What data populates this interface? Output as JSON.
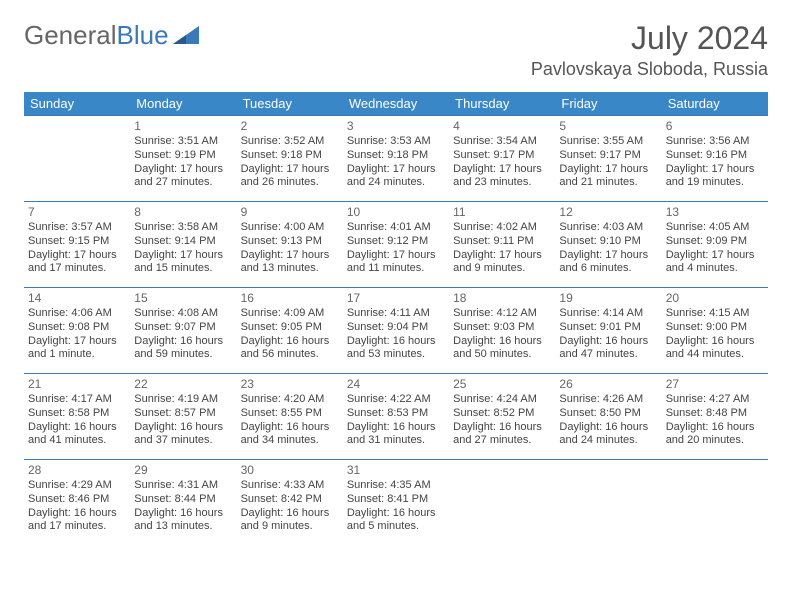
{
  "logo": {
    "word1": "General",
    "word2": "Blue"
  },
  "title": "July 2024",
  "location": "Pavlovskaya Sloboda, Russia",
  "colors": {
    "header_bg": "#3a87c8",
    "header_text": "#ffffff",
    "border": "#3a7ab8",
    "text": "#444444",
    "title_text": "#555555"
  },
  "weekdays": [
    "Sunday",
    "Monday",
    "Tuesday",
    "Wednesday",
    "Thursday",
    "Friday",
    "Saturday"
  ],
  "weeks": [
    [
      {
        "n": "",
        "sr": "",
        "ss": "",
        "dl": ""
      },
      {
        "n": "1",
        "sr": "Sunrise: 3:51 AM",
        "ss": "Sunset: 9:19 PM",
        "dl": "Daylight: 17 hours and 27 minutes."
      },
      {
        "n": "2",
        "sr": "Sunrise: 3:52 AM",
        "ss": "Sunset: 9:18 PM",
        "dl": "Daylight: 17 hours and 26 minutes."
      },
      {
        "n": "3",
        "sr": "Sunrise: 3:53 AM",
        "ss": "Sunset: 9:18 PM",
        "dl": "Daylight: 17 hours and 24 minutes."
      },
      {
        "n": "4",
        "sr": "Sunrise: 3:54 AM",
        "ss": "Sunset: 9:17 PM",
        "dl": "Daylight: 17 hours and 23 minutes."
      },
      {
        "n": "5",
        "sr": "Sunrise: 3:55 AM",
        "ss": "Sunset: 9:17 PM",
        "dl": "Daylight: 17 hours and 21 minutes."
      },
      {
        "n": "6",
        "sr": "Sunrise: 3:56 AM",
        "ss": "Sunset: 9:16 PM",
        "dl": "Daylight: 17 hours and 19 minutes."
      }
    ],
    [
      {
        "n": "7",
        "sr": "Sunrise: 3:57 AM",
        "ss": "Sunset: 9:15 PM",
        "dl": "Daylight: 17 hours and 17 minutes."
      },
      {
        "n": "8",
        "sr": "Sunrise: 3:58 AM",
        "ss": "Sunset: 9:14 PM",
        "dl": "Daylight: 17 hours and 15 minutes."
      },
      {
        "n": "9",
        "sr": "Sunrise: 4:00 AM",
        "ss": "Sunset: 9:13 PM",
        "dl": "Daylight: 17 hours and 13 minutes."
      },
      {
        "n": "10",
        "sr": "Sunrise: 4:01 AM",
        "ss": "Sunset: 9:12 PM",
        "dl": "Daylight: 17 hours and 11 minutes."
      },
      {
        "n": "11",
        "sr": "Sunrise: 4:02 AM",
        "ss": "Sunset: 9:11 PM",
        "dl": "Daylight: 17 hours and 9 minutes."
      },
      {
        "n": "12",
        "sr": "Sunrise: 4:03 AM",
        "ss": "Sunset: 9:10 PM",
        "dl": "Daylight: 17 hours and 6 minutes."
      },
      {
        "n": "13",
        "sr": "Sunrise: 4:05 AM",
        "ss": "Sunset: 9:09 PM",
        "dl": "Daylight: 17 hours and 4 minutes."
      }
    ],
    [
      {
        "n": "14",
        "sr": "Sunrise: 4:06 AM",
        "ss": "Sunset: 9:08 PM",
        "dl": "Daylight: 17 hours and 1 minute."
      },
      {
        "n": "15",
        "sr": "Sunrise: 4:08 AM",
        "ss": "Sunset: 9:07 PM",
        "dl": "Daylight: 16 hours and 59 minutes."
      },
      {
        "n": "16",
        "sr": "Sunrise: 4:09 AM",
        "ss": "Sunset: 9:05 PM",
        "dl": "Daylight: 16 hours and 56 minutes."
      },
      {
        "n": "17",
        "sr": "Sunrise: 4:11 AM",
        "ss": "Sunset: 9:04 PM",
        "dl": "Daylight: 16 hours and 53 minutes."
      },
      {
        "n": "18",
        "sr": "Sunrise: 4:12 AM",
        "ss": "Sunset: 9:03 PM",
        "dl": "Daylight: 16 hours and 50 minutes."
      },
      {
        "n": "19",
        "sr": "Sunrise: 4:14 AM",
        "ss": "Sunset: 9:01 PM",
        "dl": "Daylight: 16 hours and 47 minutes."
      },
      {
        "n": "20",
        "sr": "Sunrise: 4:15 AM",
        "ss": "Sunset: 9:00 PM",
        "dl": "Daylight: 16 hours and 44 minutes."
      }
    ],
    [
      {
        "n": "21",
        "sr": "Sunrise: 4:17 AM",
        "ss": "Sunset: 8:58 PM",
        "dl": "Daylight: 16 hours and 41 minutes."
      },
      {
        "n": "22",
        "sr": "Sunrise: 4:19 AM",
        "ss": "Sunset: 8:57 PM",
        "dl": "Daylight: 16 hours and 37 minutes."
      },
      {
        "n": "23",
        "sr": "Sunrise: 4:20 AM",
        "ss": "Sunset: 8:55 PM",
        "dl": "Daylight: 16 hours and 34 minutes."
      },
      {
        "n": "24",
        "sr": "Sunrise: 4:22 AM",
        "ss": "Sunset: 8:53 PM",
        "dl": "Daylight: 16 hours and 31 minutes."
      },
      {
        "n": "25",
        "sr": "Sunrise: 4:24 AM",
        "ss": "Sunset: 8:52 PM",
        "dl": "Daylight: 16 hours and 27 minutes."
      },
      {
        "n": "26",
        "sr": "Sunrise: 4:26 AM",
        "ss": "Sunset: 8:50 PM",
        "dl": "Daylight: 16 hours and 24 minutes."
      },
      {
        "n": "27",
        "sr": "Sunrise: 4:27 AM",
        "ss": "Sunset: 8:48 PM",
        "dl": "Daylight: 16 hours and 20 minutes."
      }
    ],
    [
      {
        "n": "28",
        "sr": "Sunrise: 4:29 AM",
        "ss": "Sunset: 8:46 PM",
        "dl": "Daylight: 16 hours and 17 minutes."
      },
      {
        "n": "29",
        "sr": "Sunrise: 4:31 AM",
        "ss": "Sunset: 8:44 PM",
        "dl": "Daylight: 16 hours and 13 minutes."
      },
      {
        "n": "30",
        "sr": "Sunrise: 4:33 AM",
        "ss": "Sunset: 8:42 PM",
        "dl": "Daylight: 16 hours and 9 minutes."
      },
      {
        "n": "31",
        "sr": "Sunrise: 4:35 AM",
        "ss": "Sunset: 8:41 PM",
        "dl": "Daylight: 16 hours and 5 minutes."
      },
      {
        "n": "",
        "sr": "",
        "ss": "",
        "dl": ""
      },
      {
        "n": "",
        "sr": "",
        "ss": "",
        "dl": ""
      },
      {
        "n": "",
        "sr": "",
        "ss": "",
        "dl": ""
      }
    ]
  ]
}
